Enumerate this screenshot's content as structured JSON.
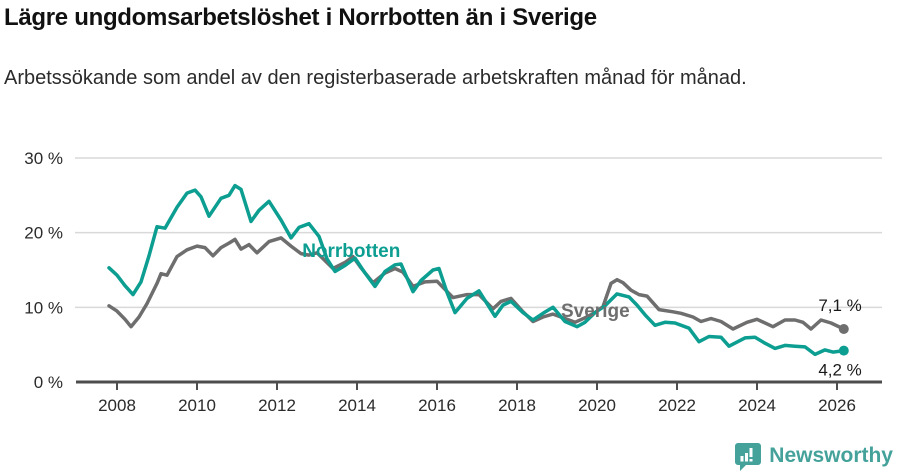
{
  "header": {
    "title": "Lägre ungdomsarbetslöshet i Norrbotten än i Sverige",
    "subtitle": "Arbetssökande som andel av den registerbaserade arbetskraften månad för månad."
  },
  "colors": {
    "norrbotten": "#0d9e92",
    "sverige": "#6e6e6e",
    "grid": "#d9d9d9",
    "axis": "#4d4d4d",
    "tick_text": "#2b2b2b",
    "end_label_text": "#1a1a1a"
  },
  "chart_data": {
    "type": "line",
    "title": "Lägre ungdomsarbetslöshet i Norrbotten än i Sverige",
    "subtitle": "Arbetssökande som andel av den registerbaserade arbetskraften månad för månad.",
    "grid": true,
    "legend": "inline-series-labels",
    "x_axis": {
      "ticks": [
        2008,
        2010,
        2012,
        2014,
        2016,
        2018,
        2020,
        2022,
        2024,
        2026
      ],
      "range": [
        2007.7,
        2027.1
      ]
    },
    "y_axis": {
      "unit": "%",
      "range": [
        0,
        30
      ],
      "ticks": [
        {
          "value": 30,
          "label": "30 %"
        },
        {
          "value": 20,
          "label": "20 %"
        },
        {
          "value": 10,
          "label": "10 %"
        },
        {
          "value": 0,
          "label": "0 %"
        }
      ]
    },
    "series": [
      {
        "name": "Sverige",
        "color": "#6e6e6e",
        "end_value": 7.1,
        "label": {
          "text": "Sverige",
          "year": 2019.1,
          "value": 8.72
        },
        "end_label": {
          "text": "7,1 %",
          "year": 2026.62,
          "value": 9.5
        },
        "points": [
          [
            2007.8,
            10.2
          ],
          [
            2008.0,
            9.5
          ],
          [
            2008.2,
            8.4
          ],
          [
            2008.35,
            7.4
          ],
          [
            2008.55,
            8.7
          ],
          [
            2008.75,
            10.5
          ],
          [
            2009.0,
            13.2
          ],
          [
            2009.1,
            14.5
          ],
          [
            2009.25,
            14.3
          ],
          [
            2009.5,
            16.8
          ],
          [
            2009.75,
            17.7
          ],
          [
            2010.0,
            18.2
          ],
          [
            2010.2,
            18.0
          ],
          [
            2010.4,
            16.9
          ],
          [
            2010.6,
            18.0
          ],
          [
            2010.8,
            18.6
          ],
          [
            2010.95,
            19.1
          ],
          [
            2011.1,
            17.8
          ],
          [
            2011.3,
            18.4
          ],
          [
            2011.5,
            17.3
          ],
          [
            2011.8,
            18.8
          ],
          [
            2012.1,
            19.3
          ],
          [
            2012.35,
            18.2
          ],
          [
            2012.6,
            17.2
          ],
          [
            2012.8,
            17.0
          ],
          [
            2013.0,
            17.3
          ],
          [
            2013.4,
            15.2
          ],
          [
            2013.7,
            16.0
          ],
          [
            2013.9,
            16.8
          ],
          [
            2014.1,
            15.3
          ],
          [
            2014.4,
            13.3
          ],
          [
            2014.7,
            14.6
          ],
          [
            2014.95,
            15.2
          ],
          [
            2015.15,
            14.7
          ],
          [
            2015.4,
            12.8
          ],
          [
            2015.7,
            13.4
          ],
          [
            2016.0,
            13.5
          ],
          [
            2016.4,
            11.3
          ],
          [
            2016.75,
            11.7
          ],
          [
            2017.05,
            11.7
          ],
          [
            2017.4,
            9.8
          ],
          [
            2017.6,
            10.8
          ],
          [
            2017.85,
            11.2
          ],
          [
            2018.15,
            9.4
          ],
          [
            2018.4,
            8.1
          ],
          [
            2018.65,
            8.7
          ],
          [
            2018.9,
            9.1
          ],
          [
            2019.2,
            8.5
          ],
          [
            2019.45,
            8.0
          ],
          [
            2019.7,
            8.6
          ],
          [
            2019.95,
            9.3
          ],
          [
            2020.15,
            10.1
          ],
          [
            2020.35,
            13.2
          ],
          [
            2020.5,
            13.7
          ],
          [
            2020.65,
            13.3
          ],
          [
            2020.85,
            12.3
          ],
          [
            2021.05,
            11.7
          ],
          [
            2021.25,
            11.5
          ],
          [
            2021.55,
            9.7
          ],
          [
            2021.9,
            9.4
          ],
          [
            2022.1,
            9.2
          ],
          [
            2022.4,
            8.7
          ],
          [
            2022.6,
            8.1
          ],
          [
            2022.85,
            8.5
          ],
          [
            2023.1,
            8.1
          ],
          [
            2023.4,
            7.1
          ],
          [
            2023.75,
            8.0
          ],
          [
            2024.0,
            8.4
          ],
          [
            2024.4,
            7.4
          ],
          [
            2024.7,
            8.3
          ],
          [
            2024.95,
            8.3
          ],
          [
            2025.15,
            8.0
          ],
          [
            2025.35,
            7.1
          ],
          [
            2025.6,
            8.3
          ],
          [
            2025.85,
            7.9
          ],
          [
            2026.17,
            7.1
          ]
        ]
      },
      {
        "name": "Norrbotten",
        "color": "#0d9e92",
        "end_value": 4.2,
        "label": {
          "text": "Norrbotten",
          "year": 2012.63,
          "value": 16.75
        },
        "end_label": {
          "text": "4,2 %",
          "year": 2026.62,
          "value": 0.85
        },
        "points": [
          [
            2007.8,
            15.3
          ],
          [
            2008.0,
            14.3
          ],
          [
            2008.2,
            12.9
          ],
          [
            2008.4,
            11.7
          ],
          [
            2008.6,
            13.4
          ],
          [
            2008.8,
            16.9
          ],
          [
            2009.0,
            20.8
          ],
          [
            2009.2,
            20.6
          ],
          [
            2009.5,
            23.4
          ],
          [
            2009.75,
            25.3
          ],
          [
            2009.95,
            25.7
          ],
          [
            2010.1,
            24.8
          ],
          [
            2010.3,
            22.2
          ],
          [
            2010.6,
            24.6
          ],
          [
            2010.8,
            25.0
          ],
          [
            2010.95,
            26.3
          ],
          [
            2011.1,
            25.8
          ],
          [
            2011.35,
            21.5
          ],
          [
            2011.55,
            23.0
          ],
          [
            2011.8,
            24.2
          ],
          [
            2012.1,
            21.7
          ],
          [
            2012.35,
            19.3
          ],
          [
            2012.55,
            20.7
          ],
          [
            2012.8,
            21.2
          ],
          [
            2013.05,
            19.5
          ],
          [
            2013.25,
            16.5
          ],
          [
            2013.45,
            14.8
          ],
          [
            2013.7,
            15.6
          ],
          [
            2013.95,
            16.6
          ],
          [
            2014.2,
            14.6
          ],
          [
            2014.45,
            12.8
          ],
          [
            2014.7,
            14.8
          ],
          [
            2014.95,
            15.7
          ],
          [
            2015.1,
            15.8
          ],
          [
            2015.4,
            12.1
          ],
          [
            2015.6,
            13.6
          ],
          [
            2015.9,
            15.0
          ],
          [
            2016.05,
            15.2
          ],
          [
            2016.25,
            12.0
          ],
          [
            2016.45,
            9.3
          ],
          [
            2016.75,
            11.2
          ],
          [
            2017.05,
            12.2
          ],
          [
            2017.45,
            8.8
          ],
          [
            2017.65,
            10.3
          ],
          [
            2017.85,
            10.8
          ],
          [
            2018.15,
            9.3
          ],
          [
            2018.4,
            8.3
          ],
          [
            2018.65,
            9.2
          ],
          [
            2018.9,
            10.0
          ],
          [
            2019.2,
            8.1
          ],
          [
            2019.5,
            7.4
          ],
          [
            2019.7,
            8.0
          ],
          [
            2019.95,
            9.3
          ],
          [
            2020.2,
            10.2
          ],
          [
            2020.5,
            11.8
          ],
          [
            2020.8,
            11.4
          ],
          [
            2021.0,
            10.3
          ],
          [
            2021.2,
            9.0
          ],
          [
            2021.45,
            7.6
          ],
          [
            2021.7,
            8.0
          ],
          [
            2021.95,
            7.9
          ],
          [
            2022.3,
            7.2
          ],
          [
            2022.55,
            5.4
          ],
          [
            2022.8,
            6.1
          ],
          [
            2023.1,
            6.0
          ],
          [
            2023.3,
            4.8
          ],
          [
            2023.7,
            5.9
          ],
          [
            2023.95,
            6.0
          ],
          [
            2024.2,
            5.2
          ],
          [
            2024.45,
            4.5
          ],
          [
            2024.7,
            4.9
          ],
          [
            2024.95,
            4.8
          ],
          [
            2025.2,
            4.7
          ],
          [
            2025.45,
            3.7
          ],
          [
            2025.7,
            4.3
          ],
          [
            2025.9,
            4.0
          ],
          [
            2026.17,
            4.2
          ]
        ]
      }
    ]
  },
  "footer": {
    "brand": "Newsworthy",
    "brand_color": "#45a29b"
  }
}
